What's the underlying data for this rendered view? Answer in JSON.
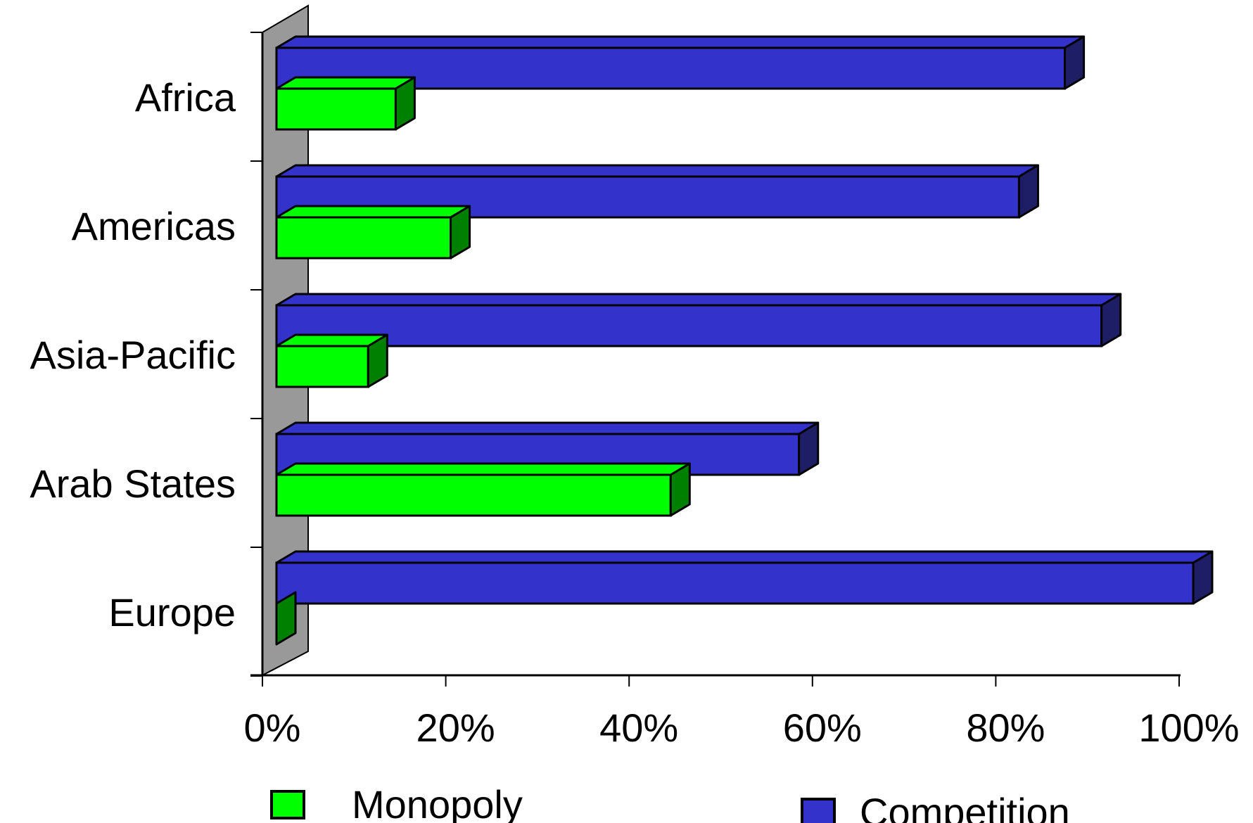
{
  "chart_data": {
    "type": "bar",
    "orientation": "horizontal",
    "style": "3d",
    "categories": [
      "Africa",
      "Americas",
      "Asia-Pacific",
      "Arab States",
      "Europe"
    ],
    "series": [
      {
        "name": "Competition",
        "values": [
          86,
          81,
          90,
          57,
          100
        ],
        "color": "#3333CC",
        "side_color": "#1E1E66"
      },
      {
        "name": "Monopoly",
        "values": [
          13,
          19,
          10,
          43,
          0
        ],
        "color": "#00FF00",
        "side_color": "#008000"
      }
    ],
    "xlim": [
      0,
      100
    ],
    "x_ticks": [
      0,
      20,
      40,
      60,
      80,
      100
    ],
    "x_tick_labels": [
      "0%",
      "20%",
      "40%",
      "60%",
      "80%",
      "100%"
    ],
    "title": "",
    "xlabel": "",
    "ylabel": "",
    "grid": false,
    "legend": {
      "position": "bottom",
      "items": [
        {
          "label": "Monopoly",
          "color": "#00FF00"
        },
        {
          "label": "Competition",
          "color": "#3333CC"
        }
      ]
    },
    "wall_color": "#999999"
  }
}
